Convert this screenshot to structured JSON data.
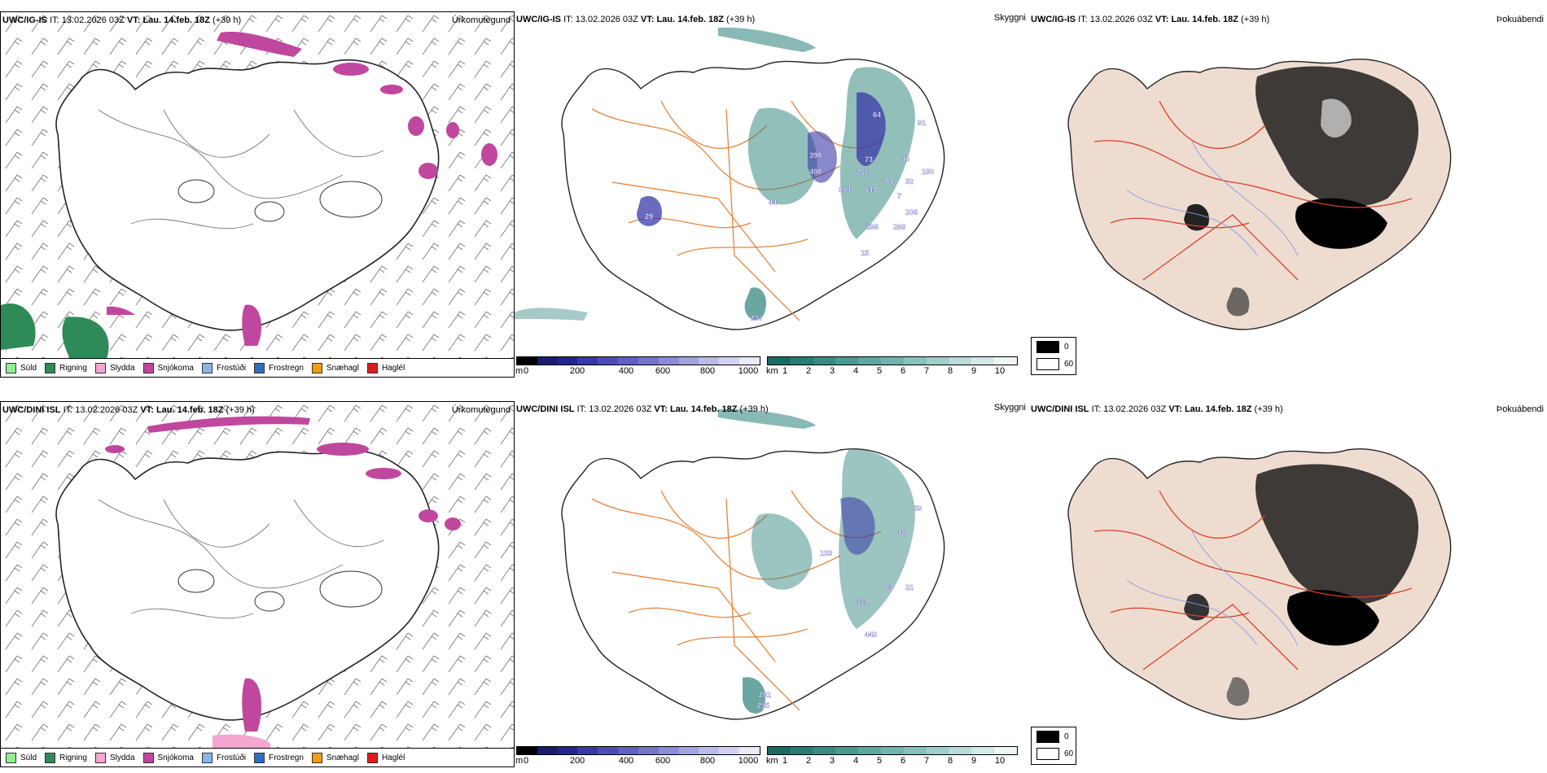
{
  "rows": [
    {
      "model": "UWC/IG-IS",
      "it_label": "IT:",
      "it_value": "13.02.2026 03Z",
      "vt_label": "VT:",
      "vt_value": "Lau. 14.feb. 18Z",
      "lead": "(+39 h)"
    },
    {
      "model": "UWC/DINI ISL",
      "it_label": "IT:",
      "it_value": "13.02.2026 03Z",
      "vt_label": "VT:",
      "vt_value": "Lau. 14.feb. 18Z",
      "lead": "(+39 h)"
    }
  ],
  "panel_names": {
    "precip_type": "Úrkomutegund",
    "visibility": "Skyggni",
    "cloud_cover": "Þokuábendi"
  },
  "precip_legend": [
    {
      "label": "Súld",
      "color": "#90ee90"
    },
    {
      "label": "Rigning",
      "color": "#2e8b57"
    },
    {
      "label": "Slydda",
      "color": "#f4a6d0"
    },
    {
      "label": "Snjókoma",
      "color": "#c0479e"
    },
    {
      "label": "Frostúði",
      "color": "#87b7ec"
    },
    {
      "label": "Frostregn",
      "color": "#2f6fc0"
    },
    {
      "label": "Snæhagl",
      "color": "#f39c12"
    },
    {
      "label": "Haglél",
      "color": "#e31a1c"
    }
  ],
  "ceiling_bar": {
    "unit": "m",
    "ticks": [
      "0",
      "200",
      "400",
      "600",
      "800",
      "1000"
    ],
    "colors": [
      "#000000",
      "#1a1a70",
      "#24248f",
      "#3838a8",
      "#4c4cb8",
      "#6060c4",
      "#7474cc",
      "#8b8bd6",
      "#a3a3df",
      "#bbbbe8",
      "#d2d2f0",
      "#eaeaf8"
    ]
  },
  "visibility_bar": {
    "unit": "km",
    "ticks": [
      "1",
      "2",
      "3",
      "4",
      "5",
      "6",
      "7",
      "8",
      "9",
      "10"
    ],
    "colors": [
      "#1b6b63",
      "#2a7b73",
      "#3a8a82",
      "#4b9891",
      "#5ea6a0",
      "#72b3ae",
      "#88c1bc",
      "#a0cecb",
      "#b9dcd9",
      "#d3e9e7",
      "#edf6f5"
    ]
  },
  "cloud_legend": {
    "items": [
      {
        "label": "0",
        "color": "#000000"
      },
      {
        "label": "60",
        "color": "#ffffff"
      }
    ]
  },
  "map_labels": {
    "row0": [
      "64",
      "91",
      "398",
      "73",
      "40",
      "400",
      "261",
      "84",
      "32",
      "354",
      "649",
      "7",
      "180",
      "29",
      "44",
      "208",
      "598",
      "268",
      "15",
      "237"
    ],
    "row1": [
      "59",
      "42",
      "133",
      "64",
      "21",
      "311",
      "443",
      "261",
      "255"
    ]
  },
  "colors": {
    "land_cloud": "#efdcd0",
    "roads": "#e8843a",
    "roads_red": "#d6402a",
    "rivers": "#8a9ee6",
    "snow": "#c0479e",
    "rain": "#2e8b57",
    "vis": "#3a8a82",
    "ceiling": "#3838a8"
  }
}
